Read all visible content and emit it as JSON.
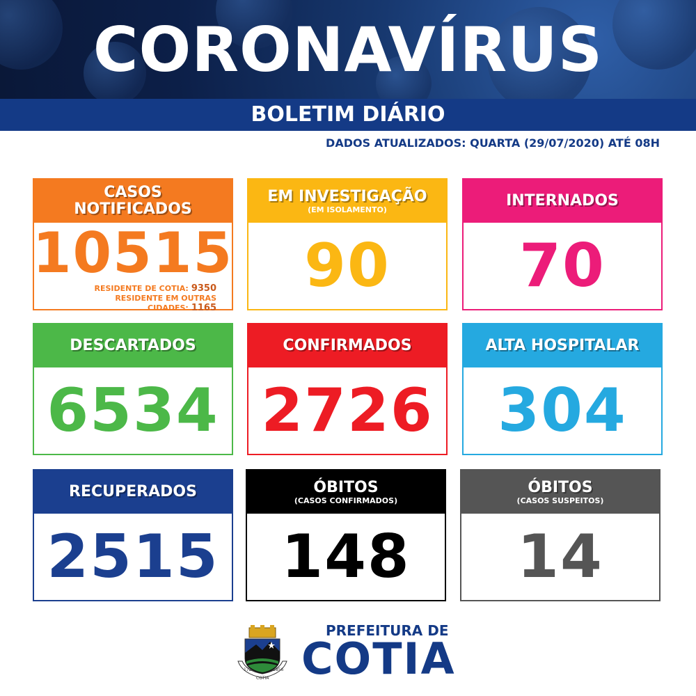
{
  "header": {
    "title": "CORONAVÍRUS",
    "subtitle": "BOLETIM DIÁRIO",
    "updated": "DADOS ATUALIZADOS: QUARTA (29/07/2020) ATÉ 08H"
  },
  "cards": {
    "notificados": {
      "title": "CASOS NOTIFICADOS",
      "value": "10515",
      "resident_label": "RESIDENTE DE COTIA:",
      "resident_value": "9350",
      "other_label": "RESIDENTE EM OUTRAS CIDADES:",
      "other_value": "1165",
      "color": "#f47a20"
    },
    "investigacao": {
      "title": "EM INVESTIGAÇÃO",
      "sub": "(EM ISOLAMENTO)",
      "value": "90",
      "color": "#fbb713"
    },
    "internados": {
      "title": "INTERNADOS",
      "value": "70",
      "color": "#ec1c79"
    },
    "descartados": {
      "title": "DESCARTADOS",
      "value": "6534",
      "color": "#4cb848"
    },
    "confirmados": {
      "title": "CONFIRMADOS",
      "value": "2726",
      "color": "#ed1c24"
    },
    "alta": {
      "title": "ALTA HOSPITALAR",
      "value": "304",
      "color": "#25a9e0"
    },
    "recuperados": {
      "title": "RECUPERADOS",
      "value": "2515",
      "color": "#1b3f8f"
    },
    "obitos_confirmados": {
      "title": "ÓBITOS",
      "sub": "(CASOS CONFIRMADOS)",
      "value": "148",
      "color": "#000000"
    },
    "obitos_suspeitos": {
      "title": "ÓBITOS",
      "sub": "(CASOS SUSPEITOS)",
      "value": "14",
      "color": "#555555"
    }
  },
  "footer": {
    "prefeitura": "PREFEITURA DE",
    "city": "COTIA",
    "crest_year_left": "1723",
    "crest_year_right": "1856",
    "crest_name": "COTIA"
  }
}
